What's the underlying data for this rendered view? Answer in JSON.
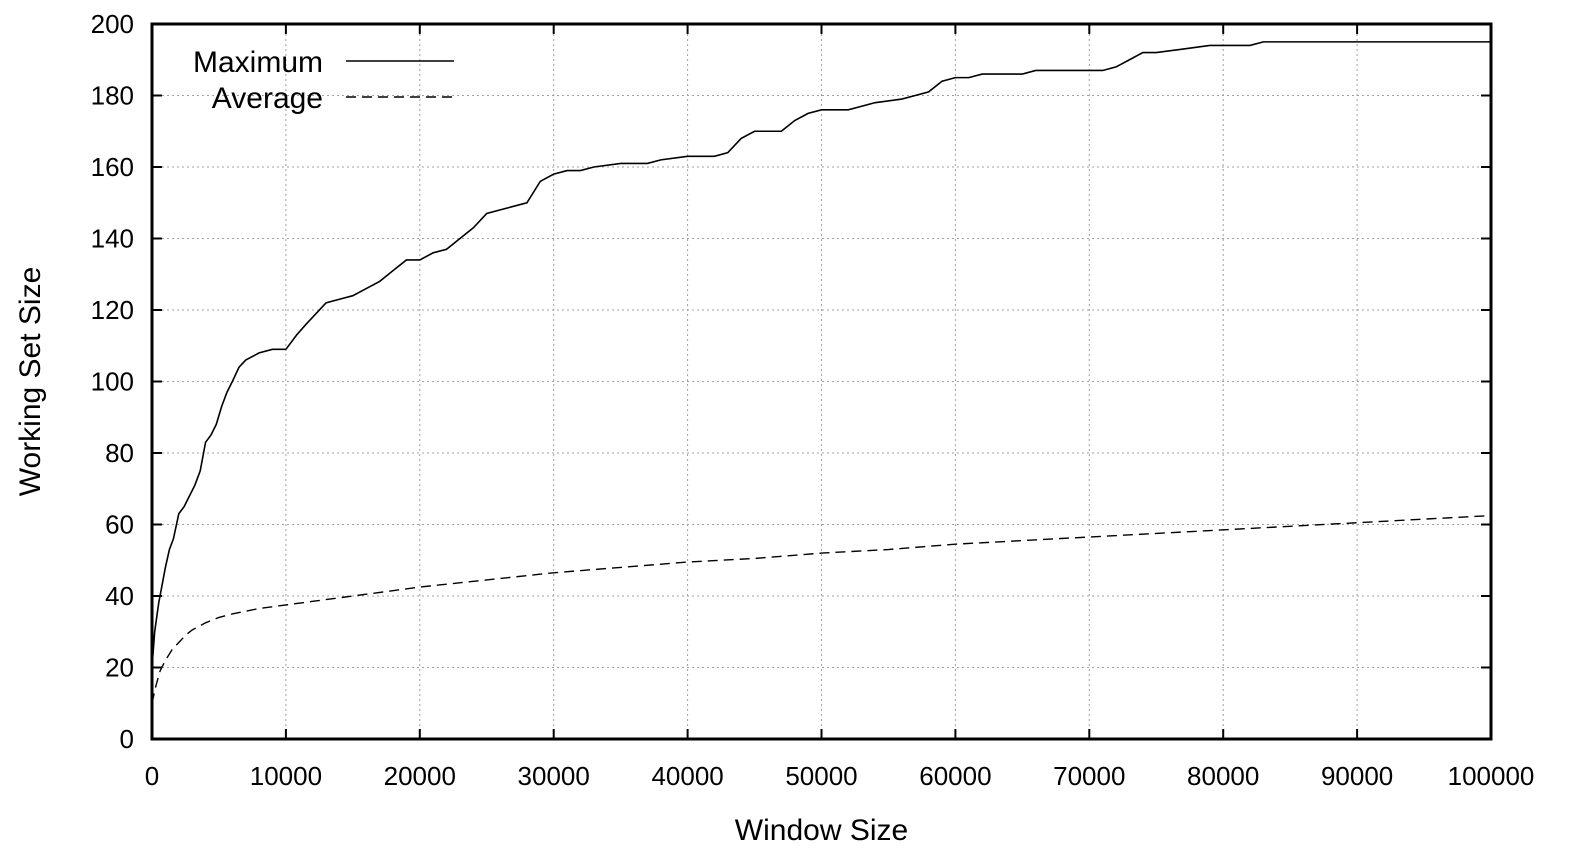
{
  "chart_data": {
    "type": "line",
    "title": "",
    "xlabel": "Window Size",
    "ylabel": "Working Set Size",
    "xlim": [
      0,
      100000
    ],
    "ylim": [
      0,
      200
    ],
    "xticks": [
      0,
      10000,
      20000,
      30000,
      40000,
      50000,
      60000,
      70000,
      80000,
      90000,
      100000
    ],
    "yticks": [
      0,
      20,
      40,
      60,
      80,
      100,
      120,
      140,
      160,
      180,
      200
    ],
    "xtick_labels": [
      "0",
      "10000",
      "20000",
      "30000",
      "40000",
      "50000",
      "60000",
      "70000",
      "80000",
      "90000",
      "100000"
    ],
    "ytick_labels": [
      "0",
      "20",
      "40",
      "60",
      "80",
      "100",
      "120",
      "140",
      "160",
      "180",
      "200"
    ],
    "grid": true,
    "legend": {
      "position": "top-left"
    },
    "series": [
      {
        "name": "Maximum",
        "style": "solid",
        "x": [
          0,
          200,
          500,
          800,
          1000,
          1300,
          1600,
          2000,
          2400,
          2800,
          3200,
          3600,
          4000,
          4400,
          4800,
          5200,
          5600,
          6000,
          6500,
          7000,
          8000,
          9000,
          10000,
          10800,
          11500,
          12000,
          13000,
          14000,
          15000,
          16000,
          17000,
          18000,
          19000,
          20000,
          21000,
          22000,
          23000,
          24000,
          25000,
          26000,
          27000,
          28000,
          29000,
          30000,
          31000,
          32000,
          33000,
          35000,
          37000,
          38000,
          40000,
          42000,
          43000,
          44000,
          45000,
          46000,
          47000,
          48000,
          49000,
          50000,
          52000,
          53000,
          54000,
          56000,
          57000,
          58000,
          59000,
          60000,
          61000,
          62000,
          65000,
          66000,
          67000,
          69000,
          71000,
          72000,
          73000,
          74000,
          75000,
          77000,
          79000,
          80000,
          82000,
          83000,
          85000,
          90000,
          95000,
          100000
        ],
        "values": [
          20,
          30,
          38,
          44,
          48,
          53,
          56,
          63,
          65,
          68,
          71,
          75,
          83,
          85,
          88,
          93,
          97,
          100,
          104,
          106,
          108,
          109,
          109,
          113,
          116,
          118,
          122,
          123,
          124,
          126,
          128,
          131,
          134,
          134,
          136,
          137,
          140,
          143,
          147,
          148,
          149,
          150,
          156,
          158,
          159,
          159,
          160,
          161,
          161,
          162,
          163,
          163,
          164,
          168,
          170,
          170,
          170,
          173,
          175,
          176,
          176,
          177,
          178,
          179,
          180,
          181,
          184,
          185,
          185,
          186,
          186,
          187,
          187,
          187,
          187,
          188,
          190,
          192,
          192,
          193,
          194,
          194,
          194,
          195,
          195,
          195,
          195,
          195
        ]
      },
      {
        "name": "Average",
        "style": "dashed",
        "x": [
          0,
          300,
          600,
          1000,
          1500,
          2000,
          2500,
          3000,
          4000,
          5000,
          6000,
          8000,
          10000,
          12000,
          15000,
          20000,
          25000,
          30000,
          35000,
          40000,
          45000,
          50000,
          55000,
          60000,
          65000,
          70000,
          75000,
          80000,
          85000,
          90000,
          95000,
          100000
        ],
        "values": [
          10,
          15,
          19,
          22,
          25,
          27,
          29,
          30.5,
          32.5,
          34,
          35,
          36.5,
          37.5,
          38.5,
          40,
          42.5,
          44.5,
          46.5,
          48,
          49.5,
          50.5,
          52,
          53,
          54.5,
          55.5,
          56.5,
          57.5,
          58.5,
          59.5,
          60.5,
          61.5,
          62.5
        ]
      }
    ]
  }
}
